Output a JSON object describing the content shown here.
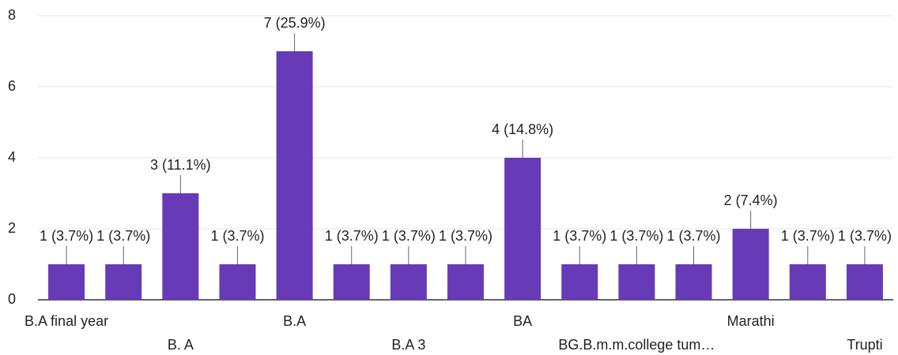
{
  "chart_data": {
    "type": "bar",
    "categories": [
      "B.A final year",
      null,
      "B. A",
      null,
      "B.A",
      null,
      "B.A 3",
      null,
      "BA",
      null,
      "BG.B.m.m.college tum…",
      null,
      "Marathi",
      null,
      "Trupti"
    ],
    "values": [
      1,
      1,
      3,
      1,
      7,
      1,
      1,
      1,
      4,
      1,
      1,
      1,
      2,
      1,
      1
    ],
    "value_labels": [
      "1 (3.7%)",
      "1 (3.7%)",
      "3 (11.1%)",
      "1 (3.7%)",
      "7 (25.9%)",
      "1 (3.7%)",
      "1 (3.7%)",
      "1 (3.7%)",
      "4 (14.8%)",
      "1 (3.7%)",
      "1 (3.7%)",
      "1 (3.7%)",
      "2 (7.4%)",
      "1 (3.7%)",
      "1 (3.7%)"
    ],
    "color": "#673ab7",
    "ylim": [
      0,
      8
    ],
    "yticks": [
      0,
      2,
      4,
      6,
      8
    ],
    "grid": true
  }
}
